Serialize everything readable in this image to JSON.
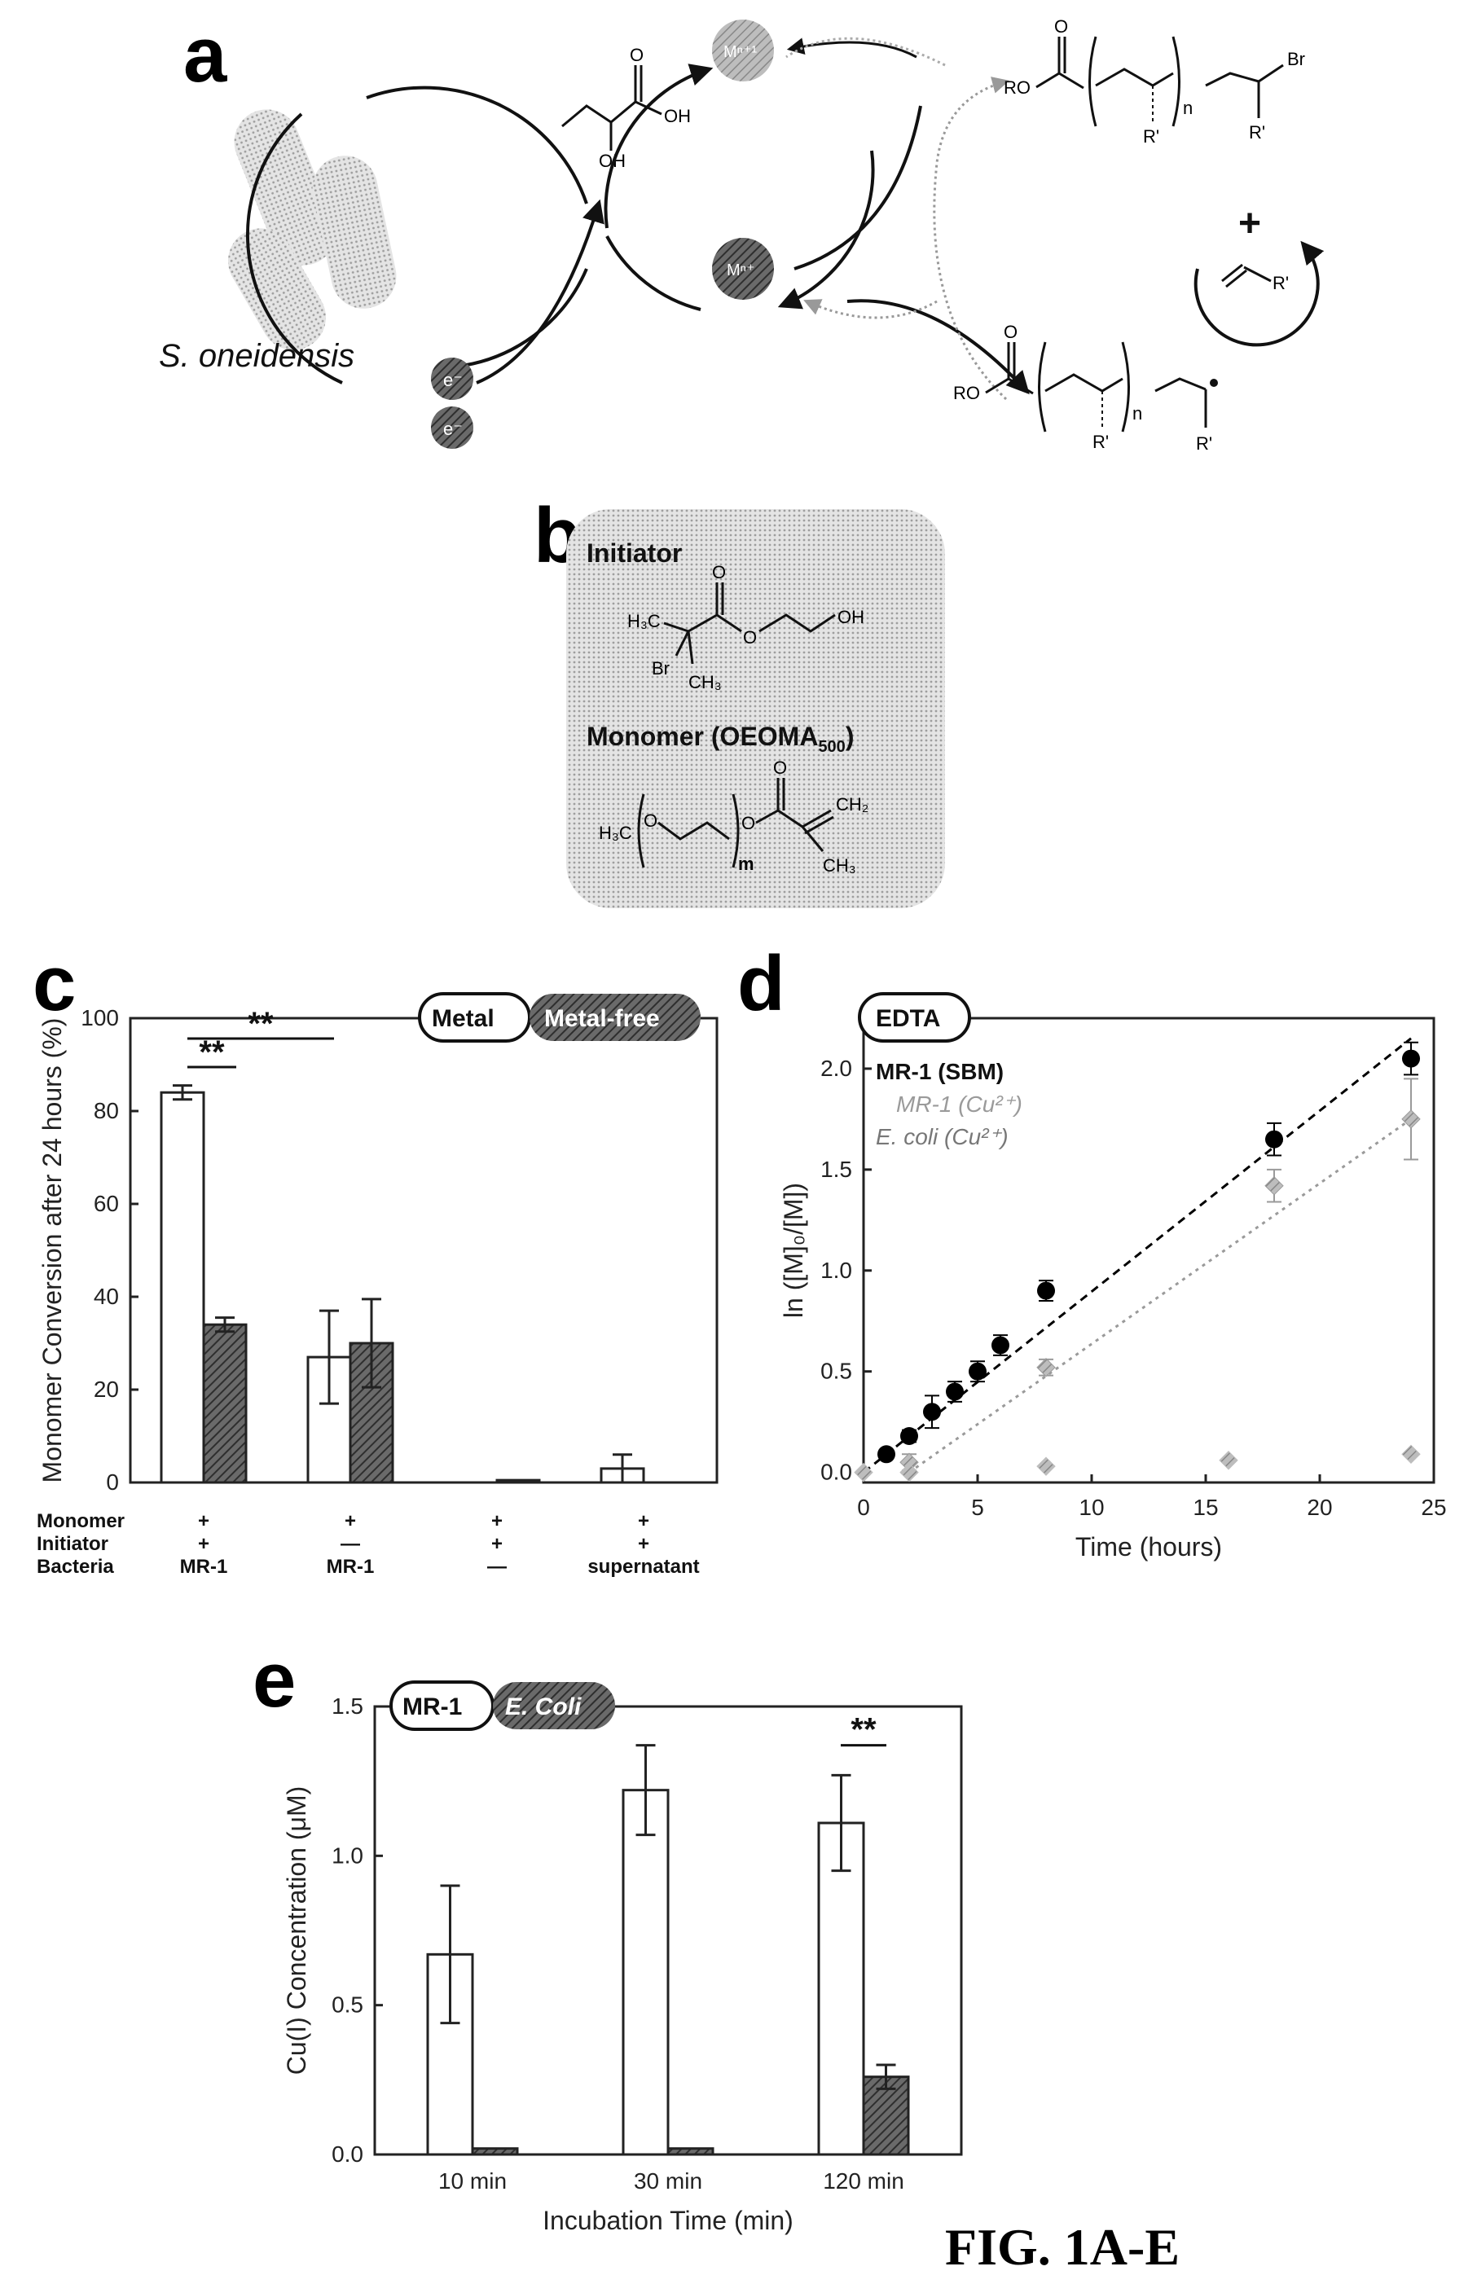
{
  "figure_label": "FIG. 1A-E",
  "panel_a": {
    "letter": "a",
    "organism": "S. oneidensis",
    "electron_label": "e⁻",
    "lactate_oh": "OH",
    "lactate_oh2": "OH",
    "lactate_o": "O",
    "metal_top": "Mⁿ⁺¹",
    "metal_bottom": "Mⁿ⁺",
    "dormant_ro": "RO",
    "dormant_o": "O",
    "dormant_n": "n",
    "dormant_br": "Br",
    "dormant_r1": "R'",
    "dormant_r2": "R'",
    "active_ro": "RO",
    "active_o": "O",
    "active_n": "n",
    "active_r1": "R'",
    "active_r2": "R'",
    "monomer_plus": "+",
    "monomer_r": "R'"
  },
  "panel_b": {
    "letter": "b",
    "initiator_title": "Initiator",
    "monomer_title": "Monomer (OEOMA",
    "monomer_sub": "500",
    "monomer_close": ")",
    "atoms": {
      "h3c": "H₃C",
      "br": "Br",
      "ch3": "CH₃",
      "o_carbonyl": "O",
      "o_ester": "O",
      "oh": "OH",
      "m_h3c": "H₃C",
      "m_o1": "O",
      "m_o2": "O",
      "m_o3": "O",
      "m_ch2": "CH₂",
      "m_ch3": "CH₃",
      "m_m": "m"
    }
  },
  "panel_c": {
    "letter": "c",
    "legend": {
      "metal": "Metal",
      "metal_free": "Metal-free"
    },
    "significance": [
      "**",
      "**"
    ],
    "condition_row_labels": [
      "Monomer",
      "Initiator",
      "Bacteria"
    ],
    "conditions": [
      {
        "monomer": "+",
        "initiator": "+",
        "bacteria": "MR-1"
      },
      {
        "monomer": "+",
        "initiator": "—",
        "bacteria": "MR-1"
      },
      {
        "monomer": "+",
        "initiator": "+",
        "bacteria": "—"
      },
      {
        "monomer": "+",
        "initiator": "+",
        "bacteria": "supernatant"
      }
    ]
  },
  "panel_d": {
    "letter": "d",
    "badge": "EDTA",
    "legend": [
      "MR-1 (SBM)",
      "MR-1 (Cu²⁺)",
      "E. coli (Cu²⁺)"
    ]
  },
  "panel_e": {
    "letter": "e",
    "legend": {
      "mr1": "MR-1",
      "ecoli": "E. Coli"
    },
    "significance": "**"
  },
  "chart_data": [
    {
      "type": "bar",
      "panel": "c",
      "ylabel": "Monomer Conversion after 24 hours (%)",
      "ylim": [
        0,
        100
      ],
      "yticks": [
        0,
        20,
        40,
        60,
        80,
        100
      ],
      "categories": [
        "MR-1",
        "MR-1",
        "—",
        "supernatant"
      ],
      "series": [
        {
          "name": "Metal",
          "color": "#ffffff",
          "values": [
            84,
            27,
            0,
            3
          ],
          "errors": [
            1.5,
            10,
            0,
            3
          ]
        },
        {
          "name": "Metal-free",
          "color": "#5a5a5a",
          "values": [
            34,
            30,
            0.5,
            0
          ],
          "errors": [
            1.5,
            9.5,
            0,
            0
          ]
        }
      ]
    },
    {
      "type": "scatter",
      "panel": "d",
      "xlabel": "Time (hours)",
      "ylabel": "ln ([M]₀/[M])",
      "xlim": [
        0,
        25
      ],
      "ylim": [
        -0.05,
        2.25
      ],
      "xticks": [
        0,
        5,
        10,
        15,
        20,
        25
      ],
      "yticks": [
        0.0,
        0.5,
        1.0,
        1.5,
        2.0
      ],
      "series": [
        {
          "name": "MR-1 (SBM)",
          "color": "#000000",
          "x": [
            1,
            2,
            3,
            4,
            5,
            6,
            8,
            18,
            24
          ],
          "y": [
            0.09,
            0.18,
            0.3,
            0.4,
            0.5,
            0.63,
            0.9,
            1.65,
            2.05
          ],
          "err": [
            0.02,
            0.03,
            0.08,
            0.05,
            0.05,
            0.05,
            0.05,
            0.08,
            0.08
          ],
          "fit": [
            [
              0,
              0.0
            ],
            [
              24,
              2.15
            ]
          ]
        },
        {
          "name": "MR-1 (Cu²⁺)",
          "color": "#9a9a9a",
          "x": [
            2,
            8,
            18,
            24
          ],
          "y": [
            0.05,
            0.52,
            1.42,
            1.75
          ],
          "err": [
            0.04,
            0.04,
            0.08,
            0.2
          ],
          "fit": [
            [
              2,
              0.0
            ],
            [
              24,
              1.75
            ]
          ]
        },
        {
          "name": "E. coli (Cu²⁺)",
          "color": "#bdbdbd",
          "x": [
            0,
            2,
            8,
            16,
            24
          ],
          "y": [
            0.0,
            0.0,
            0.03,
            0.06,
            0.09
          ],
          "err": [
            0,
            0,
            0,
            0,
            0
          ]
        }
      ]
    },
    {
      "type": "bar",
      "panel": "e",
      "xlabel": "Incubation Time (min)",
      "ylabel": "Cu(I) Concentration (μM)",
      "ylim": [
        0,
        1.5
      ],
      "yticks": [
        0.0,
        0.5,
        1.0,
        1.5
      ],
      "categories": [
        "10 min",
        "30 min",
        "120 min"
      ],
      "series": [
        {
          "name": "MR-1",
          "color": "#ffffff",
          "values": [
            0.67,
            1.22,
            1.11
          ],
          "errors": [
            0.23,
            0.15,
            0.16
          ]
        },
        {
          "name": "E. Coli",
          "color": "#5a5a5a",
          "values": [
            0.02,
            0.02,
            0.26
          ],
          "errors": [
            0,
            0,
            0.04
          ]
        }
      ]
    }
  ]
}
